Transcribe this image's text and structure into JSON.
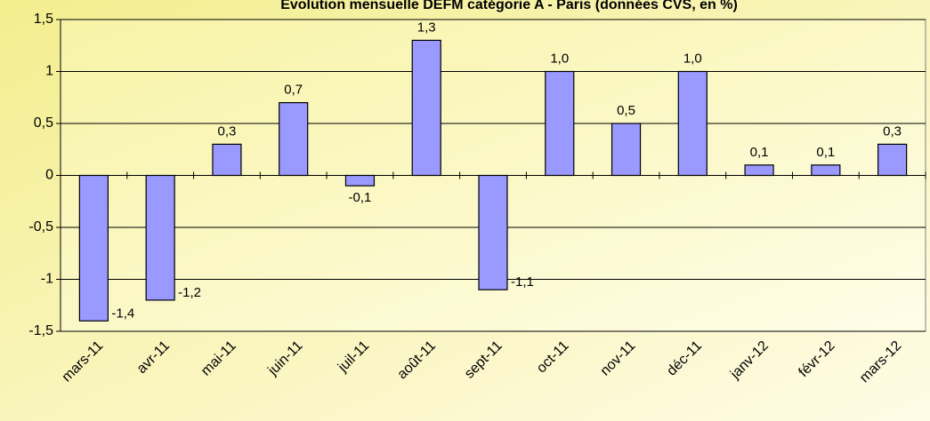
{
  "chart_data": {
    "type": "bar",
    "title": "Evolution mensuelle DEFM catégorie A - Paris (données CVS, en %)",
    "categories": [
      "mars-11",
      "avr-11",
      "mai-11",
      "juin-11",
      "juil-11",
      "août-11",
      "sept-11",
      "oct-11",
      "nov-11",
      "déc-11",
      "janv-12",
      "févr-12",
      "mars-12"
    ],
    "values": [
      -1.4,
      -1.2,
      0.3,
      0.7,
      -0.1,
      1.3,
      -1.1,
      1.0,
      0.5,
      1.0,
      0.1,
      0.1,
      0.3
    ],
    "value_labels": [
      "-1,4",
      "-1,2",
      "0,3",
      "0,7",
      "-0,1",
      "1,3",
      "-1,1",
      "1,0",
      "0,5",
      "1,0",
      "0,1",
      "0,1",
      "0,3"
    ],
    "color": "#9999ff",
    "ylim": [
      -1.5,
      1.5
    ],
    "yticks": [
      {
        "value": -1.5,
        "label": "-1,5"
      },
      -1,
      {
        "value": -0.5,
        "label": "-0,5"
      },
      0,
      {
        "value": 0.5,
        "label": "0,5"
      },
      1,
      {
        "value": 1.5,
        "label": "1,5"
      }
    ],
    "grid": true
  }
}
